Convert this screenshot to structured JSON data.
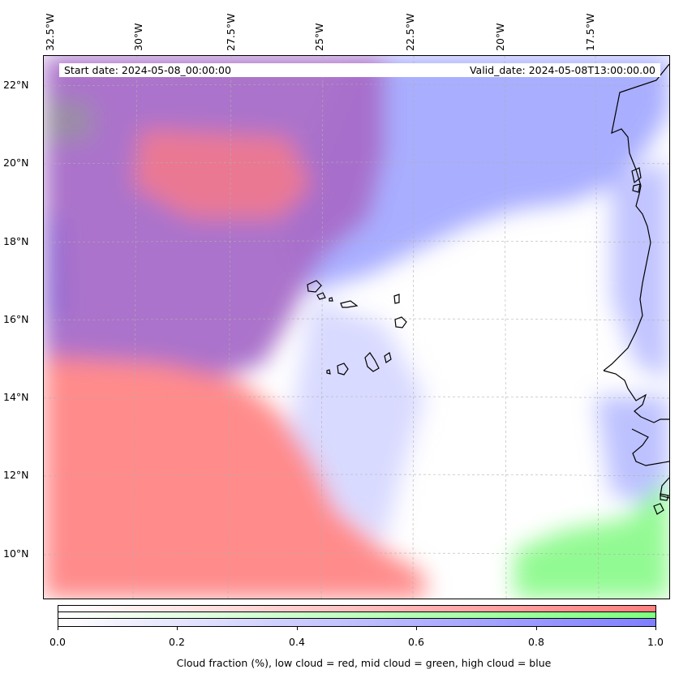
{
  "map": {
    "start_date": "Start date: 2024-05-08_00:00:00",
    "valid_date": "Valid_date: 2024-05-08T13:00:00.00",
    "lon_labels": [
      "32.5°W",
      "30°W",
      "27.5°W",
      "25°W",
      "22.5°W",
      "20°W",
      "17.5°W"
    ],
    "lat_labels": [
      "22°N",
      "20°N",
      "18°N",
      "16°N",
      "14°N",
      "12°N",
      "10°N"
    ],
    "colors": {
      "low_cloud": "#ff8080",
      "mid_cloud": "#80ff80",
      "high_cloud": "#8080ff",
      "coastline": "#000000"
    }
  },
  "colorbar": {
    "ticks": [
      "0.0",
      "0.2",
      "0.4",
      "0.6",
      "0.8",
      "1.0"
    ],
    "label": "Cloud fraction (%), low cloud = red, mid cloud = green, high cloud = blue"
  }
}
